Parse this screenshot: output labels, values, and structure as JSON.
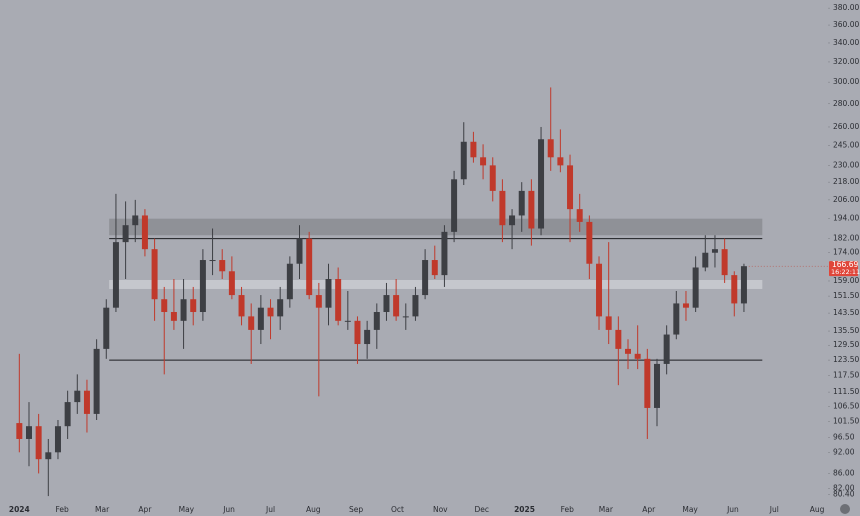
{
  "chart_data": {
    "type": "candlestick",
    "open": [
      101,
      96,
      100,
      90,
      92,
      100,
      108,
      112,
      104,
      128,
      146,
      180,
      190,
      196,
      176,
      150,
      144,
      140,
      150,
      144,
      170,
      170,
      164,
      152,
      142,
      136,
      146,
      142,
      150,
      168,
      182,
      152,
      146,
      160,
      140,
      140,
      130,
      136,
      144,
      152,
      142,
      142,
      152,
      170,
      162,
      186,
      220,
      248,
      236,
      230,
      212,
      190,
      196,
      212,
      188,
      250,
      236,
      230,
      200,
      192,
      168,
      142,
      136,
      128,
      126,
      124,
      106,
      122,
      134,
      148,
      146,
      166,
      174,
      176,
      162,
      148
    ],
    "high": [
      126,
      108,
      104,
      96,
      102,
      112,
      118,
      116,
      132,
      150,
      210,
      205,
      206,
      200,
      182,
      156,
      160,
      160,
      156,
      176,
      188,
      176,
      172,
      156,
      148,
      152,
      150,
      156,
      172,
      190,
      186,
      158,
      168,
      166,
      154,
      142,
      140,
      148,
      158,
      160,
      148,
      156,
      176,
      178,
      190,
      226,
      264,
      256,
      246,
      236,
      220,
      200,
      218,
      220,
      260,
      295,
      258,
      238,
      210,
      196,
      172,
      180,
      142,
      132,
      138,
      128,
      124,
      138,
      154,
      154,
      172,
      184,
      184,
      182,
      164,
      168
    ],
    "low": [
      92,
      88,
      86,
      80,
      90,
      96,
      104,
      98,
      102,
      124,
      144,
      160,
      180,
      172,
      140,
      118,
      136,
      128,
      138,
      140,
      162,
      160,
      150,
      138,
      122,
      130,
      132,
      136,
      146,
      160,
      150,
      110,
      138,
      138,
      136,
      122,
      124,
      128,
      140,
      140,
      136,
      140,
      150,
      160,
      156,
      180,
      216,
      232,
      220,
      205,
      180,
      176,
      186,
      178,
      184,
      226,
      225,
      180,
      186,
      160,
      136,
      130,
      114,
      120,
      120,
      96,
      100,
      118,
      132,
      140,
      144,
      164,
      166,
      158,
      142,
      144
    ],
    "close": [
      96,
      100,
      90,
      92,
      100,
      108,
      112,
      104,
      128,
      146,
      180,
      190,
      196,
      176,
      150,
      144,
      140,
      150,
      144,
      170,
      170,
      164,
      152,
      142,
      136,
      146,
      142,
      150,
      168,
      182,
      152,
      146,
      160,
      140,
      140,
      130,
      136,
      144,
      152,
      142,
      142,
      152,
      170,
      162,
      186,
      220,
      248,
      236,
      230,
      212,
      190,
      196,
      212,
      188,
      250,
      236,
      230,
      200,
      192,
      168,
      142,
      136,
      128,
      126,
      124,
      106,
      122,
      134,
      148,
      146,
      166,
      174,
      176,
      162,
      148,
      166.69
    ],
    "up_color": "#3d3f44",
    "down_color": "#c0392b",
    "log_scale": true,
    "ylim": [
      78,
      390
    ],
    "yticks": [
      {
        "value": 380,
        "label": "380.00"
      },
      {
        "value": 360,
        "label": "360.00"
      },
      {
        "value": 340,
        "label": "340.00"
      },
      {
        "value": 320,
        "label": "320.00"
      },
      {
        "value": 300,
        "label": "300.00"
      },
      {
        "value": 280,
        "label": "280.00"
      },
      {
        "value": 260,
        "label": "260.00"
      },
      {
        "value": 245,
        "label": "245.00"
      },
      {
        "value": 230,
        "label": "230.00"
      },
      {
        "value": 218,
        "label": "218.00"
      },
      {
        "value": 206,
        "label": "206.00"
      },
      {
        "value": 194,
        "label": "194.00"
      },
      {
        "value": 182,
        "label": "182.00"
      },
      {
        "value": 174,
        "label": "174.00"
      },
      {
        "value": 159,
        "label": "159.00"
      },
      {
        "value": 151.5,
        "label": "151.50"
      },
      {
        "value": 143.5,
        "label": "143.50"
      },
      {
        "value": 135.5,
        "label": "135.50"
      },
      {
        "value": 129.5,
        "label": "129.50"
      },
      {
        "value": 123.5,
        "label": "123.50"
      },
      {
        "value": 117.5,
        "label": "117.50"
      },
      {
        "value": 111.5,
        "label": "111.50"
      },
      {
        "value": 106.5,
        "label": "106.50"
      },
      {
        "value": 101.5,
        "label": "101.50"
      },
      {
        "value": 96.5,
        "label": "96.50"
      },
      {
        "value": 92,
        "label": "92.00"
      },
      {
        "value": 86,
        "label": "86.00"
      },
      {
        "value": 82,
        "label": "82.00"
      },
      {
        "value": 80.4,
        "label": "80.40"
      }
    ],
    "xlim": [
      -2,
      83.7
    ],
    "xticks": [
      {
        "value": 0,
        "label": "2024"
      },
      {
        "value": 4.43,
        "label": "Feb"
      },
      {
        "value": 8.57,
        "label": "Mar"
      },
      {
        "value": 13,
        "label": "Apr"
      },
      {
        "value": 17.29,
        "label": "May"
      },
      {
        "value": 21.71,
        "label": "Jun"
      },
      {
        "value": 26,
        "label": "Jul"
      },
      {
        "value": 30.43,
        "label": "Aug"
      },
      {
        "value": 34.86,
        "label": "Sep"
      },
      {
        "value": 39.14,
        "label": "Oct"
      },
      {
        "value": 43.57,
        "label": "Nov"
      },
      {
        "value": 47.86,
        "label": "Dec"
      },
      {
        "value": 52.29,
        "label": "2025"
      },
      {
        "value": 56.71,
        "label": "Feb"
      },
      {
        "value": 60.71,
        "label": "Mar"
      },
      {
        "value": 65.14,
        "label": "Apr"
      },
      {
        "value": 69.43,
        "label": "May"
      },
      {
        "value": 73.86,
        "label": "Jun"
      },
      {
        "value": 78.14,
        "label": "Jul"
      },
      {
        "value": 82.57,
        "label": "Aug"
      }
    ],
    "levels": [
      182,
      123.5
    ],
    "zones": [
      {
        "low": 184,
        "high": 194,
        "color": "#8f9197"
      },
      {
        "low": 155,
        "high": 159.5,
        "color": "#c5c7cd"
      }
    ],
    "last_price": 166.69,
    "countdown": "16:22:11"
  }
}
